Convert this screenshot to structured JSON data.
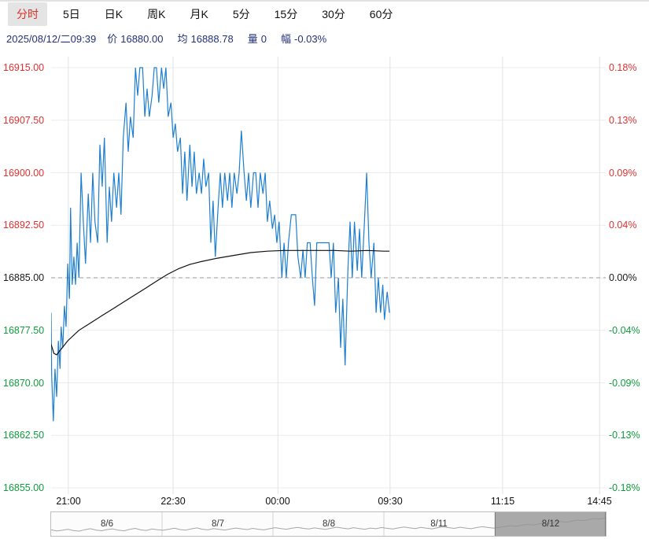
{
  "colors": {
    "up": "#e03131",
    "down": "#0f9c3c",
    "neutral": "#1a1a1a",
    "price_line": "#1e7fd0",
    "avg_line": "#111111",
    "prev_close_line": "#999999",
    "grid": "#ececec",
    "grid_vertical": "#e2e2e2",
    "info_text": "#233178",
    "active_tab": "#d93025",
    "nav_line": "#a6a6a6",
    "nav_overlay": "#949494"
  },
  "toolbar": {
    "tabs": [
      {
        "label": "分时",
        "active": true
      },
      {
        "label": "5日",
        "active": false
      },
      {
        "label": "日K",
        "active": false
      },
      {
        "label": "周K",
        "active": false
      },
      {
        "label": "月K",
        "active": false
      },
      {
        "label": "5分",
        "active": false
      },
      {
        "label": "15分",
        "active": false
      },
      {
        "label": "30分",
        "active": false
      },
      {
        "label": "60分",
        "active": false
      }
    ]
  },
  "info": {
    "datetime": "2025/08/12/二09:39",
    "price_label": "价",
    "price": "16880.00",
    "avg_label": "均",
    "avg": "16888.78",
    "volume_label": "量",
    "volume": "0",
    "change_label": "幅",
    "change": "-0.03%"
  },
  "chart_data": {
    "type": "line",
    "title": "",
    "xlabel": "",
    "ylabel": "",
    "prev_close": 16885.0,
    "ylim": [
      16855,
      16915
    ],
    "grid": true,
    "y_axis_left": [
      {
        "label": "16915.00",
        "value": 16915.0,
        "sign": "up"
      },
      {
        "label": "16907.50",
        "value": 16907.5,
        "sign": "up"
      },
      {
        "label": "16900.00",
        "value": 16900.0,
        "sign": "up"
      },
      {
        "label": "16892.50",
        "value": 16892.5,
        "sign": "up"
      },
      {
        "label": "16885.00",
        "value": 16885.0,
        "sign": "flat"
      },
      {
        "label": "16877.50",
        "value": 16877.5,
        "sign": "down"
      },
      {
        "label": "16870.00",
        "value": 16870.0,
        "sign": "down"
      },
      {
        "label": "16862.50",
        "value": 16862.5,
        "sign": "down"
      },
      {
        "label": "16855.00",
        "value": 16855.0,
        "sign": "down"
      }
    ],
    "y_axis_right": [
      {
        "label": "0.18%",
        "sign": "up"
      },
      {
        "label": "0.13%",
        "sign": "up"
      },
      {
        "label": "0.09%",
        "sign": "up"
      },
      {
        "label": "0.04%",
        "sign": "up"
      },
      {
        "label": "0.00%",
        "sign": "flat"
      },
      {
        "label": "-0.04%",
        "sign": "down"
      },
      {
        "label": "-0.09%",
        "sign": "down"
      },
      {
        "label": "-0.13%",
        "sign": "down"
      },
      {
        "label": "-0.18%",
        "sign": "down"
      }
    ],
    "x_ticks": [
      {
        "label": "21:00",
        "pos": 0.031
      },
      {
        "label": "22:30",
        "pos": 0.22
      },
      {
        "label": "00:00",
        "pos": 0.409
      },
      {
        "label": "09:30",
        "pos": 0.611
      },
      {
        "label": "11:15",
        "pos": 0.814
      },
      {
        "label": "14:45",
        "pos": 0.989
      }
    ],
    "series": [
      {
        "name": "price",
        "points": [
          [
            0.0,
            16880
          ],
          [
            0.001,
            16871
          ],
          [
            0.004,
            16864.5
          ],
          [
            0.007,
            16872
          ],
          [
            0.01,
            16868
          ],
          [
            0.013,
            16876
          ],
          [
            0.016,
            16872
          ],
          [
            0.018,
            16878
          ],
          [
            0.021,
            16875
          ],
          [
            0.024,
            16881
          ],
          [
            0.027,
            16878
          ],
          [
            0.03,
            16887
          ],
          [
            0.033,
            16882
          ],
          [
            0.035,
            16895
          ],
          [
            0.038,
            16884
          ],
          [
            0.041,
            16888
          ],
          [
            0.044,
            16884
          ],
          [
            0.047,
            16890
          ],
          [
            0.05,
            16885
          ],
          [
            0.054,
            16900
          ],
          [
            0.058,
            16893
          ],
          [
            0.062,
            16887
          ],
          [
            0.067,
            16897
          ],
          [
            0.071,
            16890
          ],
          [
            0.075,
            16900
          ],
          [
            0.079,
            16893
          ],
          [
            0.084,
            16890
          ],
          [
            0.088,
            16904
          ],
          [
            0.092,
            16898
          ],
          [
            0.096,
            16905
          ],
          [
            0.101,
            16890
          ],
          [
            0.105,
            16898
          ],
          [
            0.109,
            16893
          ],
          [
            0.113,
            16900
          ],
          [
            0.118,
            16895
          ],
          [
            0.122,
            16900
          ],
          [
            0.126,
            16894
          ],
          [
            0.13,
            16905
          ],
          [
            0.135,
            16910
          ],
          [
            0.139,
            16903
          ],
          [
            0.143,
            16908
          ],
          [
            0.148,
            16905
          ],
          [
            0.152,
            16915
          ],
          [
            0.156,
            16911
          ],
          [
            0.16,
            16915
          ],
          [
            0.165,
            16915
          ],
          [
            0.169,
            16908
          ],
          [
            0.173,
            16912
          ],
          [
            0.177,
            16908
          ],
          [
            0.182,
            16911
          ],
          [
            0.186,
            16915
          ],
          [
            0.19,
            16915
          ],
          [
            0.194,
            16910
          ],
          [
            0.199,
            16915
          ],
          [
            0.203,
            16912
          ],
          [
            0.207,
            16915
          ],
          [
            0.211,
            16908
          ],
          [
            0.216,
            16910
          ],
          [
            0.22,
            16905
          ],
          [
            0.224,
            16907
          ],
          [
            0.228,
            16903
          ],
          [
            0.233,
            16905
          ],
          [
            0.237,
            16897
          ],
          [
            0.241,
            16903
          ],
          [
            0.245,
            16896
          ],
          [
            0.25,
            16904
          ],
          [
            0.254,
            16898
          ],
          [
            0.258,
            16903
          ],
          [
            0.262,
            16897
          ],
          [
            0.267,
            16900
          ],
          [
            0.271,
            16897
          ],
          [
            0.275,
            16902
          ],
          [
            0.279,
            16898
          ],
          [
            0.284,
            16900
          ],
          [
            0.288,
            16890
          ],
          [
            0.292,
            16896
          ],
          [
            0.296,
            16888
          ],
          [
            0.301,
            16895
          ],
          [
            0.305,
            16900
          ],
          [
            0.309,
            16895
          ],
          [
            0.313,
            16900
          ],
          [
            0.318,
            16896
          ],
          [
            0.322,
            16900
          ],
          [
            0.326,
            16895
          ],
          [
            0.33,
            16900
          ],
          [
            0.335,
            16897
          ],
          [
            0.339,
            16900
          ],
          [
            0.343,
            16906
          ],
          [
            0.348,
            16900
          ],
          [
            0.352,
            16896
          ],
          [
            0.356,
            16900
          ],
          [
            0.36,
            16895
          ],
          [
            0.365,
            16900
          ],
          [
            0.369,
            16900
          ],
          [
            0.373,
            16895
          ],
          [
            0.377,
            16900
          ],
          [
            0.382,
            16897
          ],
          [
            0.386,
            16900
          ],
          [
            0.39,
            16893
          ],
          [
            0.394,
            16896
          ],
          [
            0.399,
            16892
          ],
          [
            0.403,
            16894
          ],
          [
            0.407,
            16890
          ],
          [
            0.411,
            16893
          ],
          [
            0.416,
            16885
          ],
          [
            0.42,
            16890
          ],
          [
            0.424,
            16885
          ],
          [
            0.428,
            16890
          ],
          [
            0.433,
            16894
          ],
          [
            0.437,
            16894
          ],
          [
            0.441,
            16894
          ],
          [
            0.445,
            16888
          ],
          [
            0.45,
            16885
          ],
          [
            0.454,
            16889
          ],
          [
            0.458,
            16885
          ],
          [
            0.462,
            16890
          ],
          [
            0.467,
            16890
          ],
          [
            0.471,
            16885
          ],
          [
            0.475,
            16881
          ],
          [
            0.479,
            16890
          ],
          [
            0.484,
            16890
          ],
          [
            0.488,
            16890
          ],
          [
            0.492,
            16890
          ],
          [
            0.496,
            16890
          ],
          [
            0.501,
            16890
          ],
          [
            0.505,
            16885
          ],
          [
            0.509,
            16890
          ],
          [
            0.513,
            16880
          ],
          [
            0.518,
            16885
          ],
          [
            0.522,
            16875
          ],
          [
            0.526,
            16882
          ],
          [
            0.53,
            16872.5
          ],
          [
            0.535,
            16886
          ],
          [
            0.539,
            16893
          ],
          [
            0.543,
            16885
          ],
          [
            0.547,
            16893
          ],
          [
            0.552,
            16886
          ],
          [
            0.556,
            16892
          ],
          [
            0.56,
            16885
          ],
          [
            0.565,
            16893
          ],
          [
            0.569,
            16900
          ],
          [
            0.573,
            16890
          ],
          [
            0.577,
            16885
          ],
          [
            0.582,
            16890
          ],
          [
            0.586,
            16880
          ],
          [
            0.59,
            16885
          ],
          [
            0.594,
            16880
          ],
          [
            0.598,
            16884
          ],
          [
            0.601,
            16879
          ],
          [
            0.606,
            16883
          ],
          [
            0.61,
            16880
          ]
        ]
      },
      {
        "name": "average",
        "points": [
          [
            0.0,
            16875.5
          ],
          [
            0.005,
            16874.2
          ],
          [
            0.01,
            16874.0
          ],
          [
            0.02,
            16875.0
          ],
          [
            0.03,
            16876.0
          ],
          [
            0.05,
            16877.5
          ],
          [
            0.07,
            16878.5
          ],
          [
            0.09,
            16879.5
          ],
          [
            0.11,
            16880.5
          ],
          [
            0.13,
            16881.5
          ],
          [
            0.15,
            16882.5
          ],
          [
            0.17,
            16883.5
          ],
          [
            0.19,
            16884.5
          ],
          [
            0.21,
            16885.5
          ],
          [
            0.23,
            16886.3
          ],
          [
            0.25,
            16886.9
          ],
          [
            0.27,
            16887.3
          ],
          [
            0.3,
            16887.8
          ],
          [
            0.33,
            16888.2
          ],
          [
            0.36,
            16888.6
          ],
          [
            0.39,
            16888.8
          ],
          [
            0.42,
            16888.9
          ],
          [
            0.45,
            16888.9
          ],
          [
            0.48,
            16888.9
          ],
          [
            0.51,
            16888.9
          ],
          [
            0.54,
            16888.8
          ],
          [
            0.57,
            16888.9
          ],
          [
            0.6,
            16888.8
          ],
          [
            0.61,
            16888.8
          ]
        ]
      }
    ]
  },
  "navigator": {
    "dates": [
      "8/6",
      "8/7",
      "8/8",
      "8/11",
      "8/12"
    ],
    "selected": "8/12",
    "selection": {
      "start": 0.8,
      "end": 1.0
    },
    "values": [
      16760,
      16748,
      16755,
      16768,
      16752,
      16745,
      16762,
      16774,
      16758,
      16750,
      16764,
      16772,
      16756,
      16749,
      16766,
      16778,
      16760,
      16753,
      16770,
      16762,
      16755,
      16768,
      16780,
      16764,
      16757,
      16772,
      16784,
      16768,
      16760,
      16775,
      16766,
      16758,
      16770,
      16782,
      16772,
      16764,
      16778,
      16768,
      16760,
      16774,
      16786,
      16776,
      16768,
      16780,
      16790,
      16778,
      16770,
      16784,
      16774,
      16766,
      16780,
      16792,
      16782,
      16772,
      16786,
      16776,
      16768,
      16782,
      16774,
      16788,
      16778,
      16770,
      16784,
      16794,
      16784,
      16776,
      16790,
      16780,
      16772,
      16786,
      16796,
      16786,
      16778,
      16792,
      16782,
      16774,
      16788,
      16798,
      16788,
      16780,
      16792,
      16800,
      16810,
      16802,
      16816,
      16826,
      16818,
      16830,
      16842,
      16834,
      16848,
      16860,
      16852,
      16866,
      16878,
      16870,
      16884,
      16896,
      16890,
      16905
    ]
  }
}
